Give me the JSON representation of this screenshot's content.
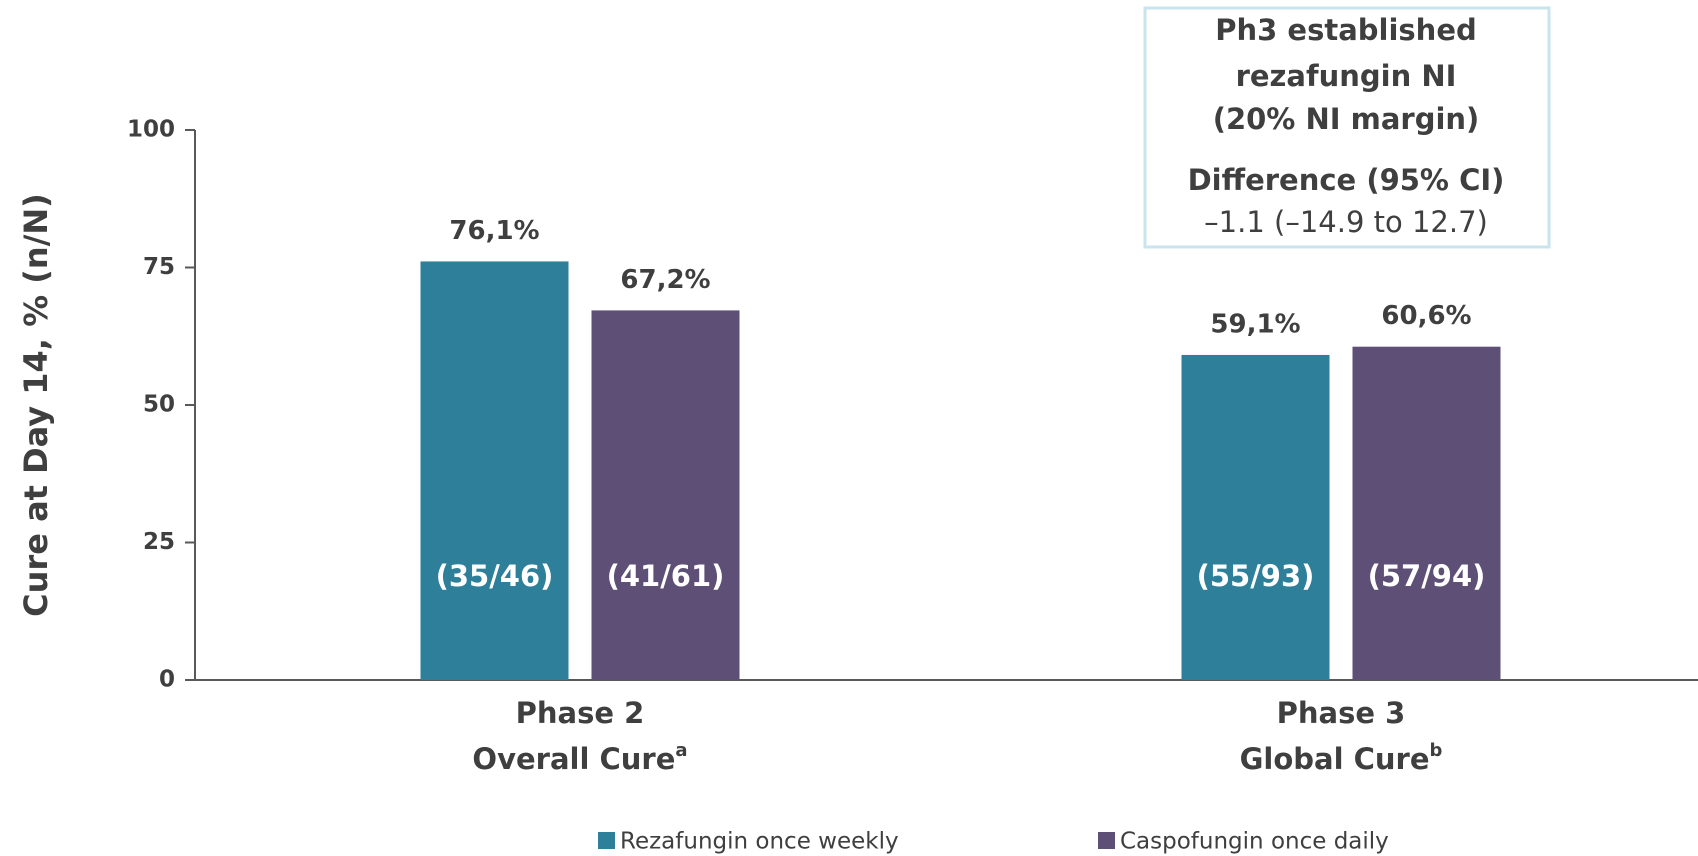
{
  "chart_data": {
    "type": "bar",
    "y_label": "Cure at Day 14, % (n/N)",
    "categories": [
      "Phase 2",
      "Phase 3"
    ],
    "category_subtitles": [
      "Overall Cure",
      "Global Cure"
    ],
    "category_footnotes": [
      "a",
      "b"
    ],
    "series": [
      {
        "name": "Rezafungin once weekly",
        "color": "#2e7f9a",
        "values": [
          76.1,
          59.1
        ],
        "value_labels": [
          "76,1%",
          "59,1%"
        ],
        "count_labels": [
          "(35/46)",
          "(55/93)"
        ]
      },
      {
        "name": "Caspofungin once daily",
        "color": "#5d4f75",
        "values": [
          67.2,
          60.6
        ],
        "value_labels": [
          "67,2%",
          "60,6%"
        ],
        "count_labels": [
          "(41/61)",
          "(57/94)"
        ]
      }
    ],
    "ylim": [
      0,
      100
    ],
    "yticks": [
      0,
      25,
      50,
      75,
      100
    ],
    "grid": false,
    "annotation": {
      "title_lines": [
        "Ph3 established",
        "rezafungin NI",
        "(20% NI margin)"
      ],
      "heading": "Difference (95% CI)",
      "text": "–1.1 (–14.9 to 12.7)"
    }
  }
}
